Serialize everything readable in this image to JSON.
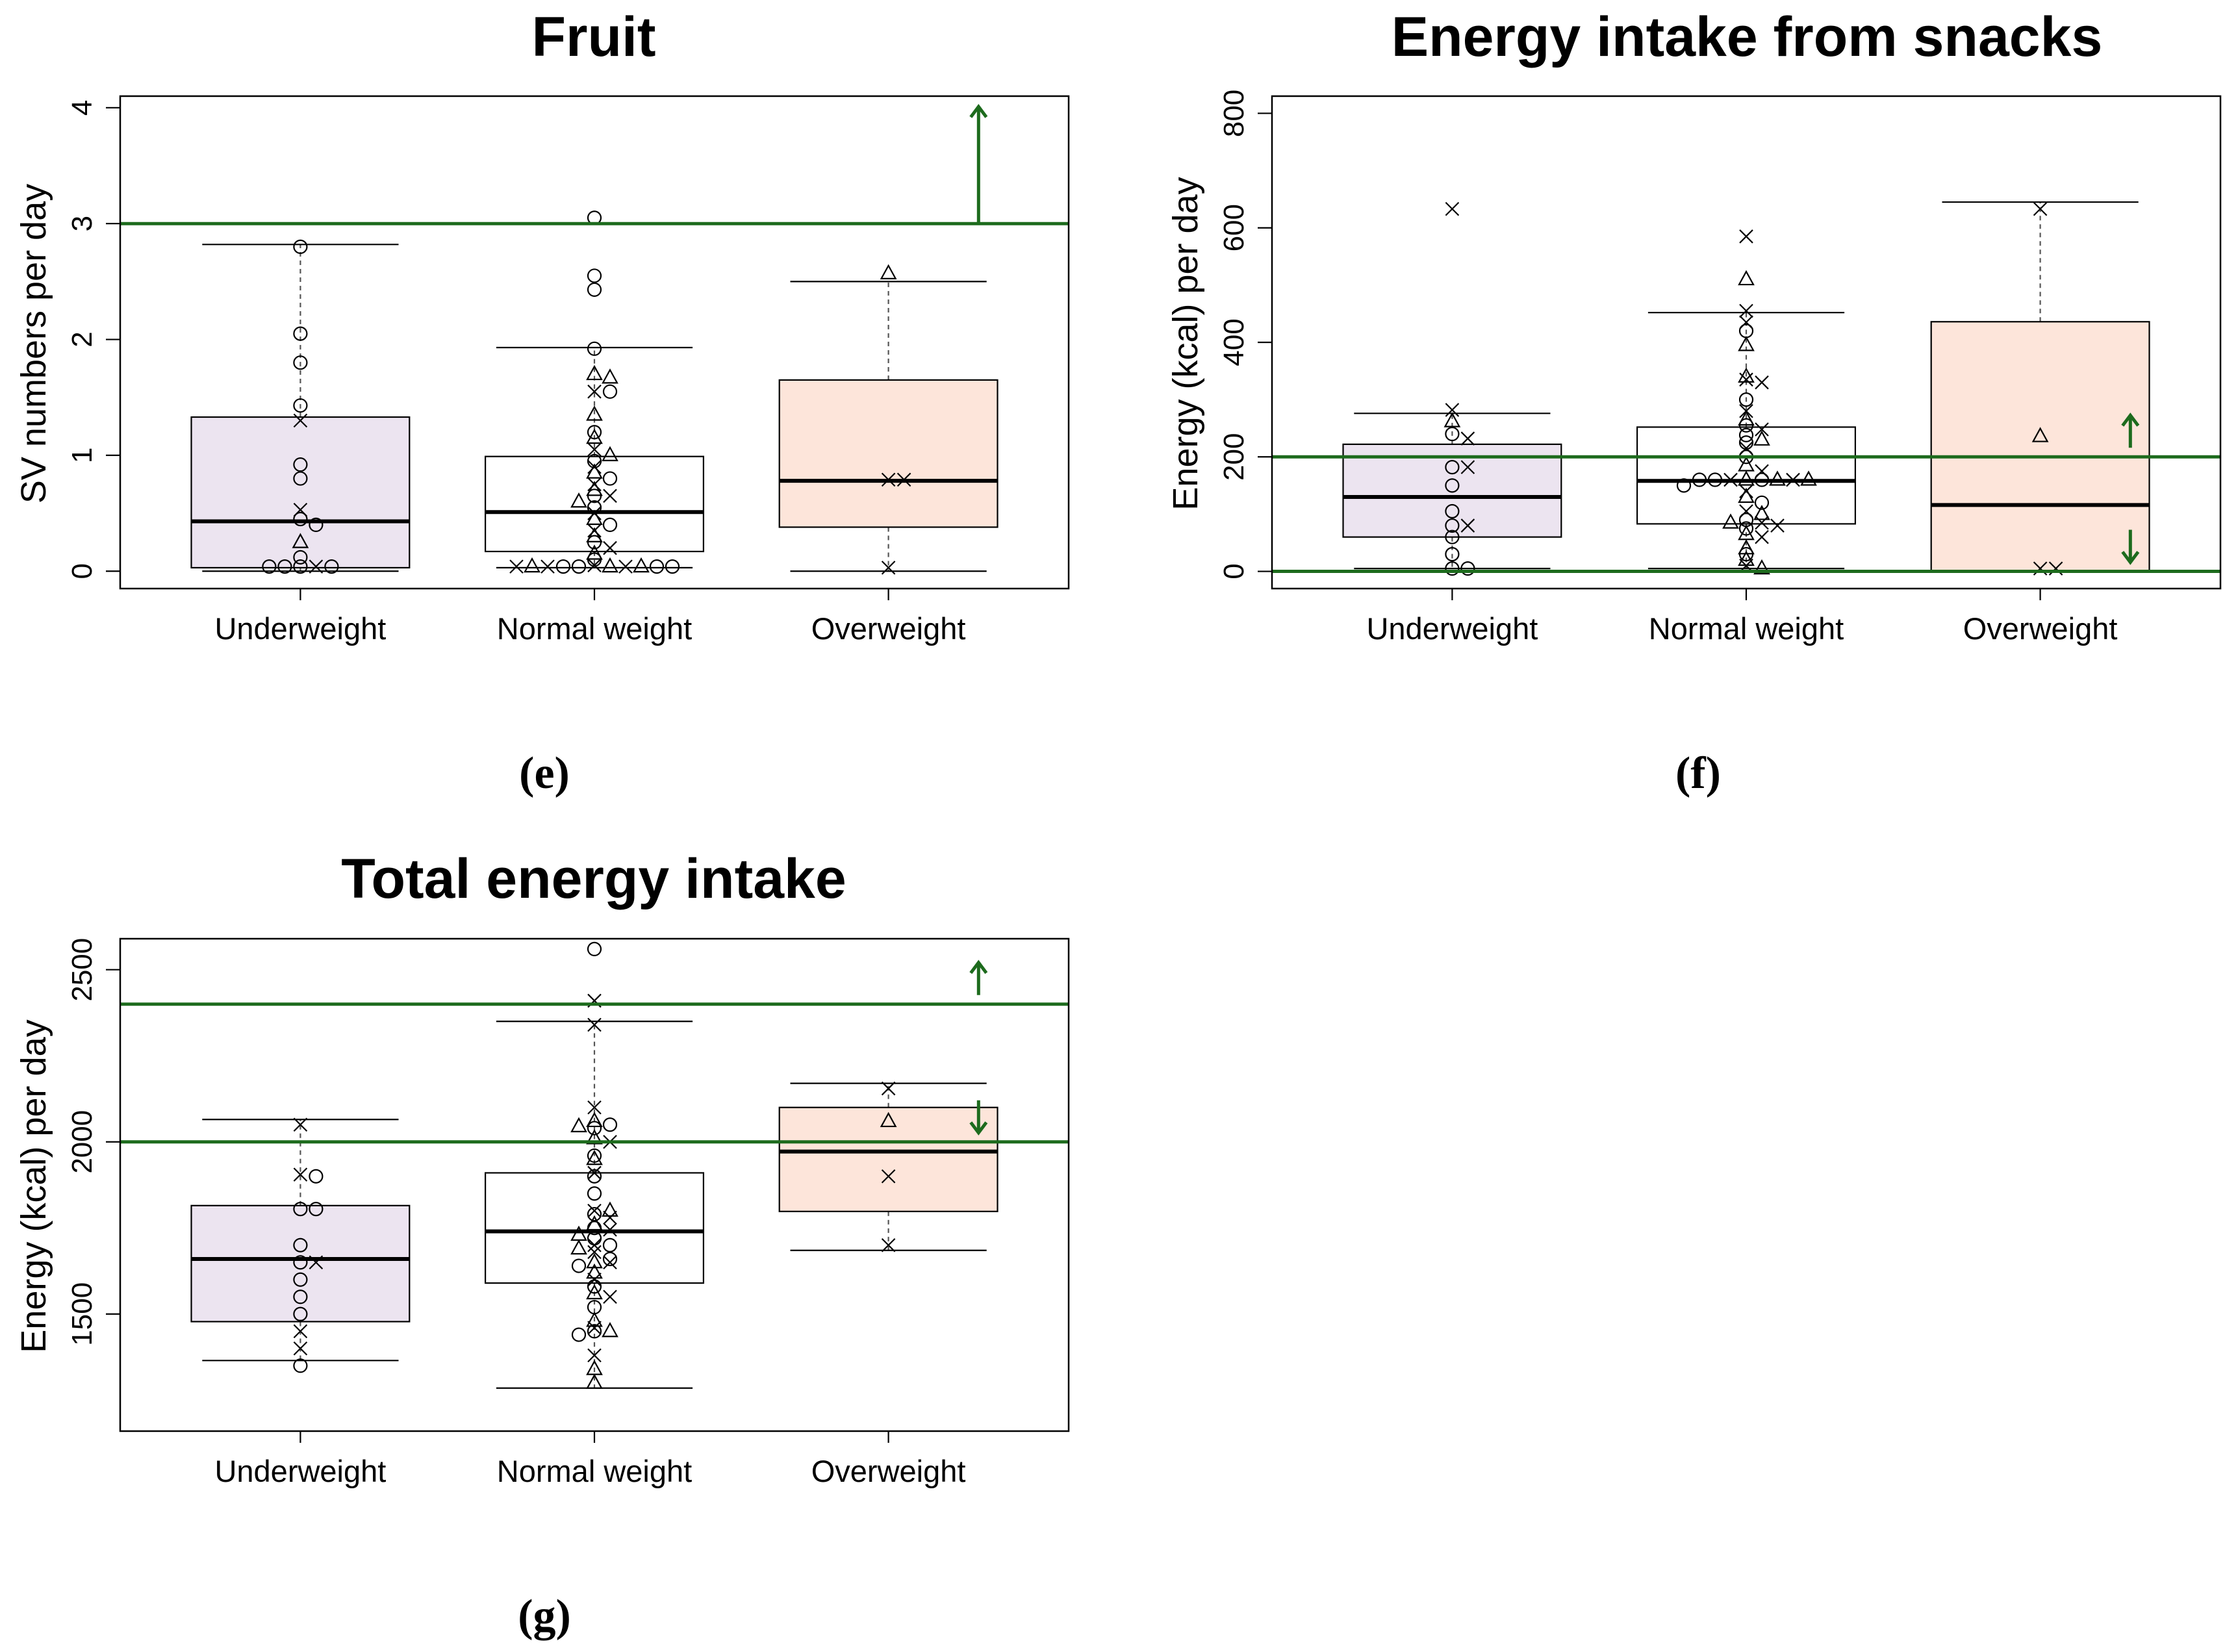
{
  "colors": {
    "underweight": "#ece4f0",
    "normal": "#ffffff",
    "overweight": "#fde5da",
    "reference": "#1d6b1d",
    "ink": "#000000",
    "whisker": "#555555"
  },
  "chart_data": [
    {
      "type": "box",
      "panel": "(e)",
      "title": "Fruit",
      "ylabel": "SV numbers per day",
      "categories": [
        "Underweight",
        "Normal weight",
        "Overweight"
      ],
      "ylim": [
        -0.15,
        4.1
      ],
      "yticks": [
        0,
        1,
        2,
        3,
        4
      ],
      "ytick_labels": [
        "0",
        "1",
        "2",
        "3",
        "4"
      ],
      "grid": false,
      "boxes": [
        {
          "category": "Underweight",
          "whisker_low": 0,
          "q1": 0.03,
          "median": 0.43,
          "q3": 1.33,
          "whisker_high": 2.82
        },
        {
          "category": "Normal weight",
          "whisker_low": 0.03,
          "q1": 0.17,
          "median": 0.51,
          "q3": 0.99,
          "whisker_high": 1.93
        },
        {
          "category": "Overweight",
          "whisker_low": 0,
          "q1": 0.38,
          "median": 0.78,
          "q3": 1.65,
          "whisker_high": 2.5
        }
      ],
      "reference_lines": [
        {
          "y": 3,
          "direction": "up"
        }
      ],
      "points": [
        {
          "category": "Underweight",
          "values": [
            2.8,
            2.05,
            1.8,
            1.43,
            1.3,
            0.92,
            0.8,
            0.53,
            0.45,
            0.4,
            0.25,
            0.12,
            0.04,
            0.04,
            0.04,
            0.04,
            0.04
          ],
          "markers": [
            "o",
            "o",
            "o",
            "o",
            "x",
            "o",
            "o",
            "x",
            "o",
            "o",
            "t",
            "o",
            "o",
            "x",
            "o",
            "o",
            "o"
          ]
        },
        {
          "category": "Normal weight",
          "values": [
            3.05,
            2.55,
            2.43,
            1.92,
            1.7,
            1.67,
            1.55,
            1.55,
            1.35,
            1.2,
            1.15,
            1.05,
            1.0,
            0.95,
            0.9,
            0.85,
            0.8,
            0.75,
            0.7,
            0.65,
            0.65,
            0.6,
            0.55,
            0.5,
            0.45,
            0.4,
            0.35,
            0.3,
            0.25,
            0.2,
            0.15,
            0.1,
            0.05,
            0.04,
            0.04,
            0.04,
            0.04,
            0.04,
            0.04,
            0.04,
            0.04,
            0.04,
            0.04
          ],
          "markers": [
            "o",
            "o",
            "o",
            "o",
            "t",
            "t",
            "x",
            "o",
            "t",
            "o",
            "t",
            "x",
            "t",
            "o",
            "x",
            "t",
            "o",
            "x",
            "t",
            "o",
            "x",
            "t",
            "o",
            "x",
            "t",
            "o",
            "x",
            "t",
            "o",
            "x",
            "t",
            "o",
            "x",
            "t",
            "o",
            "x",
            "o",
            "t",
            "x",
            "o",
            "t",
            "o",
            "x"
          ]
        },
        {
          "category": "Overweight",
          "values": [
            2.57,
            0.79,
            0.79,
            0.03
          ],
          "markers": [
            "t",
            "x",
            "x",
            "x"
          ]
        }
      ]
    },
    {
      "type": "box",
      "panel": "(f)",
      "title": "Energy intake from snacks",
      "ylabel": "Energy (kcal) per day",
      "categories": [
        "Underweight",
        "Normal weight",
        "Overweight"
      ],
      "ylim": [
        -30,
        830
      ],
      "yticks": [
        0,
        200,
        400,
        600,
        800
      ],
      "ytick_labels": [
        "0",
        "200",
        "400",
        "600",
        "800"
      ],
      "grid": false,
      "boxes": [
        {
          "category": "Underweight",
          "whisker_low": 5,
          "q1": 60,
          "median": 130,
          "q3": 222,
          "whisker_high": 276
        },
        {
          "category": "Normal weight",
          "whisker_low": 5,
          "q1": 83,
          "median": 158,
          "q3": 252,
          "whisker_high": 452
        },
        {
          "category": "Overweight",
          "whisker_low": 0,
          "q1": 0,
          "median": 116,
          "q3": 436,
          "whisker_high": 645
        }
      ],
      "reference_lines": [
        {
          "y": 200,
          "direction": "up"
        },
        {
          "y": 0,
          "direction": "down"
        }
      ],
      "points": [
        {
          "category": "Underweight",
          "values": [
            633,
            282,
            262,
            240,
            232,
            182,
            182,
            150,
            105,
            80,
            80,
            60,
            30,
            5,
            5
          ],
          "markers": [
            "x",
            "x",
            "t",
            "o",
            "x",
            "o",
            "x",
            "o",
            "o",
            "o",
            "x",
            "o",
            "o",
            "o",
            "o"
          ]
        },
        {
          "category": "Normal weight",
          "values": [
            585,
            510,
            455,
            435,
            420,
            395,
            340,
            335,
            330,
            300,
            280,
            265,
            255,
            248,
            238,
            230,
            225,
            215,
            200,
            185,
            175,
            160,
            160,
            160,
            160,
            160,
            160,
            160,
            160,
            150,
            140,
            130,
            120,
            105,
            100,
            90,
            85,
            85,
            80,
            75,
            65,
            60,
            40,
            30,
            20,
            10,
            5
          ],
          "markers": [
            "x",
            "t",
            "x",
            "x",
            "o",
            "t",
            "t",
            "x",
            "x",
            "o",
            "x",
            "t",
            "o",
            "x",
            "o",
            "t",
            "o",
            "x",
            "o",
            "t",
            "x",
            "t",
            "o",
            "x",
            "t",
            "o",
            "x",
            "o",
            "t",
            "o",
            "x",
            "t",
            "o",
            "x",
            "t",
            "o",
            "x",
            "t",
            "x",
            "o",
            "t",
            "x",
            "t",
            "o",
            "t",
            "x",
            "t"
          ]
        },
        {
          "category": "Overweight",
          "values": [
            633,
            236,
            5,
            5
          ],
          "markers": [
            "x",
            "t",
            "x",
            "x"
          ]
        }
      ]
    },
    {
      "type": "box",
      "panel": "(g)",
      "title": "Total energy intake",
      "ylabel": "Energy (kcal) per day",
      "categories": [
        "Underweight",
        "Normal weight",
        "Overweight"
      ],
      "ylim": [
        1160,
        2590
      ],
      "yticks": [
        1500,
        2000,
        2500
      ],
      "ytick_labels": [
        "1500",
        "2000",
        "2500"
      ],
      "grid": false,
      "boxes": [
        {
          "category": "Underweight",
          "whisker_low": 1365,
          "q1": 1478,
          "median": 1660,
          "q3": 1815,
          "whisker_high": 2065
        },
        {
          "category": "Normal weight",
          "whisker_low": 1285,
          "q1": 1590,
          "median": 1740,
          "q3": 1910,
          "whisker_high": 2350
        },
        {
          "category": "Overweight",
          "whisker_low": 1685,
          "q1": 1798,
          "median": 1972,
          "q3": 2100,
          "whisker_high": 2170
        }
      ],
      "reference_lines": [
        {
          "y": 2400,
          "direction": "up"
        },
        {
          "y": 2000,
          "direction": "down"
        }
      ],
      "points": [
        {
          "category": "Underweight",
          "values": [
            2050,
            1905,
            1900,
            1805,
            1805,
            1700,
            1650,
            1650,
            1600,
            1550,
            1500,
            1450,
            1400,
            1350
          ],
          "markers": [
            "x",
            "x",
            "o",
            "o",
            "o",
            "o",
            "o",
            "x",
            "o",
            "o",
            "o",
            "x",
            "x",
            "o"
          ]
        },
        {
          "category": "Normal weight",
          "values": [
            2560,
            2410,
            2340,
            2100,
            2060,
            2050,
            2045,
            2040,
            2010,
            2000,
            1960,
            1950,
            1910,
            1900,
            1850,
            1800,
            1800,
            1790,
            1780,
            1760,
            1750,
            1745,
            1730,
            1720,
            1700,
            1700,
            1690,
            1680,
            1660,
            1650,
            1650,
            1640,
            1620,
            1600,
            1580,
            1560,
            1550,
            1520,
            1480,
            1460,
            1450,
            1450,
            1440,
            1380,
            1340,
            1300
          ],
          "markers": [
            "o",
            "x",
            "x",
            "x",
            "t",
            "o",
            "t",
            "o",
            "t",
            "x",
            "o",
            "t",
            "x",
            "o",
            "o",
            "x",
            "t",
            "o",
            "x",
            "t",
            "o",
            "x",
            "t",
            "o",
            "x",
            "o",
            "t",
            "x",
            "o",
            "t",
            "x",
            "o",
            "t",
            "x",
            "o",
            "t",
            "x",
            "o",
            "t",
            "x",
            "o",
            "t",
            "o",
            "x",
            "t",
            "t"
          ]
        },
        {
          "category": "Overweight",
          "values": [
            2155,
            2060,
            1900,
            1700
          ],
          "markers": [
            "x",
            "t",
            "x",
            "x"
          ]
        }
      ]
    }
  ]
}
